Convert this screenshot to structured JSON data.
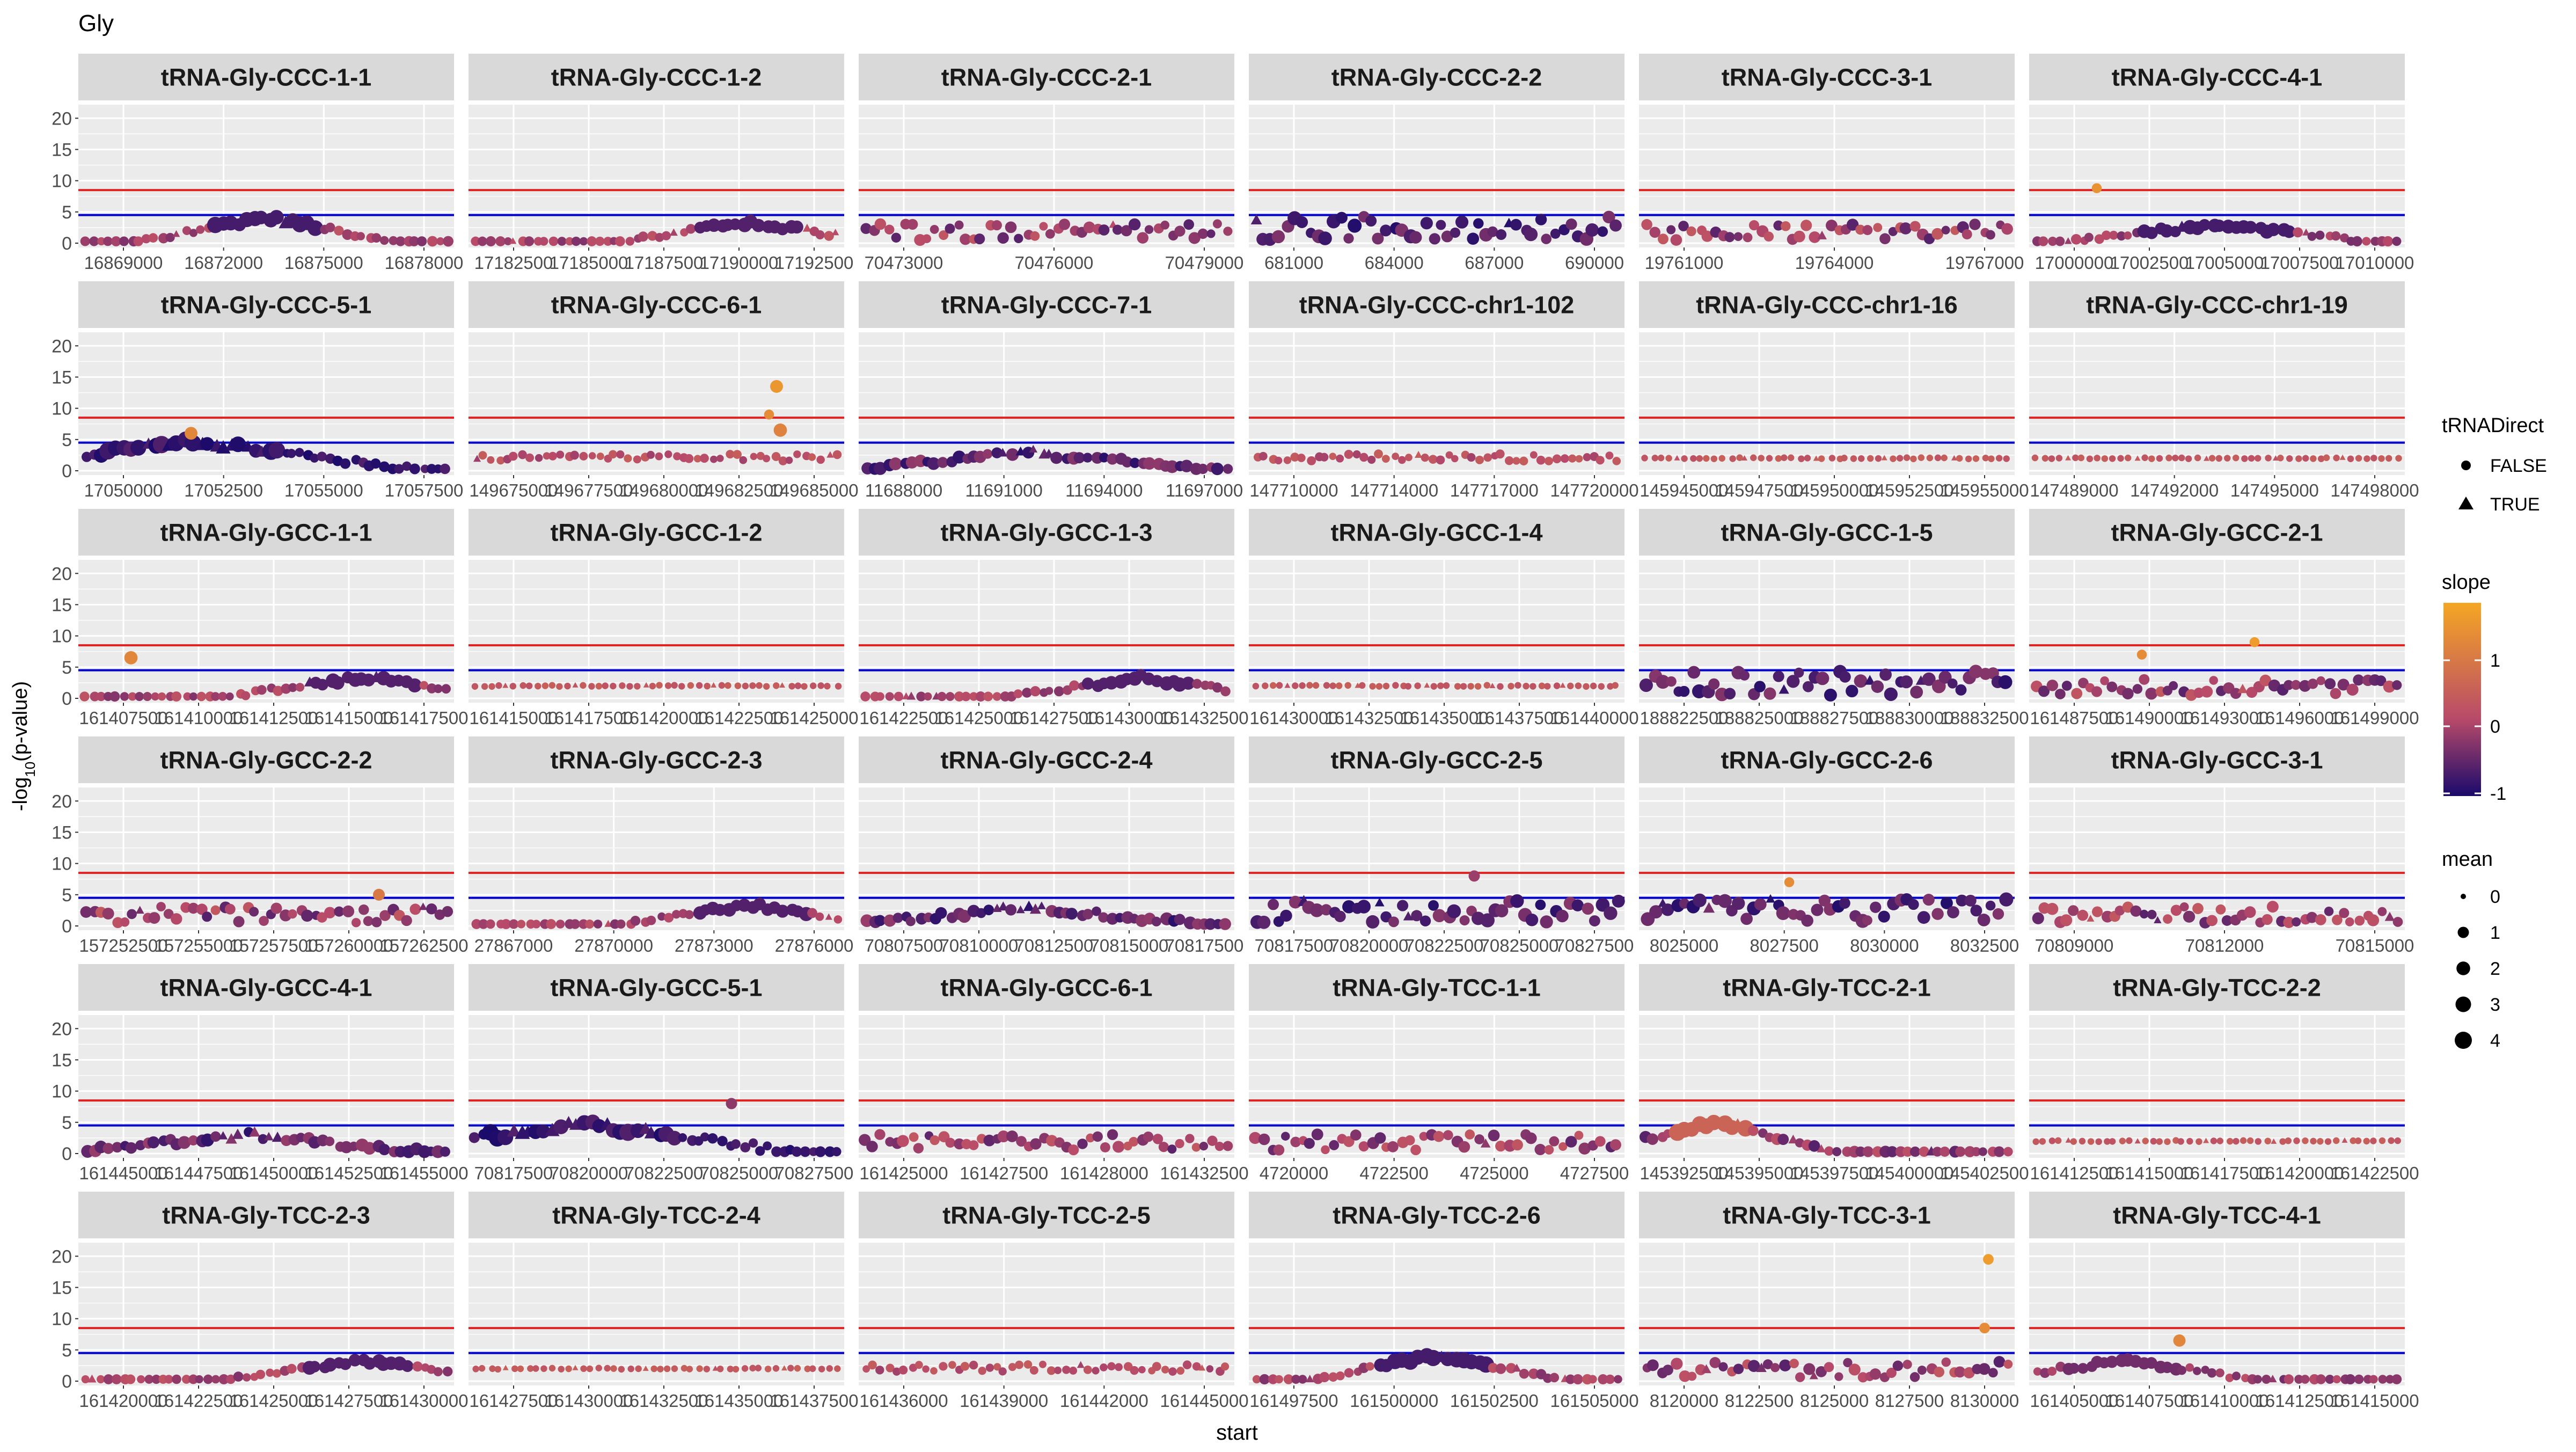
{
  "chart_data": {
    "type": "scatter",
    "title": "Gly",
    "xlabel": "start",
    "ylabel_prefix": "-log",
    "ylabel_sub": "10",
    "ylabel_suffix": "(p-value)",
    "ylim": [
      0,
      22
    ],
    "y_ticks": [
      0,
      5,
      10,
      15,
      20
    ],
    "hlines": [
      {
        "y": 4.5,
        "color": "#0000cc"
      },
      {
        "y": 8.5,
        "color": "#dd2222"
      }
    ],
    "colors": {
      "panel_bg": "#ebebeb",
      "grid": "#ffffff",
      "strip_bg": "#d9d9d9",
      "low": "#1a0a6b",
      "mid": "#b84a6a",
      "high": "#f5a623"
    },
    "legend": {
      "shape_title": "tRNADirect",
      "shape_items": [
        {
          "label": "FALSE",
          "shape": "circle"
        },
        {
          "label": "TRUE",
          "shape": "triangle"
        }
      ],
      "color_title": "slope",
      "color_ticks": [
        "1",
        "0",
        "-1"
      ],
      "color_range": [
        -1.1,
        1.8
      ],
      "size_title": "mean",
      "size_items": [
        "0",
        "1",
        "2",
        "3",
        "4"
      ]
    },
    "panels": [
      {
        "title": "tRNA-Gly-CCC-1-1",
        "x_ticks": [
          "16869000",
          "16872000",
          "16875000",
          "16878000"
        ],
        "pattern": "peak-mid",
        "highlight": []
      },
      {
        "title": "tRNA-Gly-CCC-1-2",
        "x_ticks": [
          "17182500",
          "17185000",
          "17187500",
          "17190000",
          "17192500"
        ],
        "pattern": "bump-right",
        "highlight": []
      },
      {
        "title": "tRNA-Gly-CCC-2-1",
        "x_ticks": [
          "70473000",
          "70476000",
          "70479000"
        ],
        "pattern": "scatter",
        "highlight": []
      },
      {
        "title": "tRNA-Gly-CCC-2-2",
        "x_ticks": [
          "681000",
          "684000",
          "687000",
          "690000"
        ],
        "pattern": "scatter-high",
        "highlight": []
      },
      {
        "title": "tRNA-Gly-CCC-3-1",
        "x_ticks": [
          "19761000",
          "19764000",
          "19767000"
        ],
        "pattern": "scatter",
        "highlight": []
      },
      {
        "title": "tRNA-Gly-CCC-4-1",
        "x_ticks": [
          "17000000",
          "17002500",
          "17005000",
          "17007500",
          "17010000"
        ],
        "pattern": "bump-mid",
        "highlight": [
          {
            "xf": 0.18,
            "y": 8.8,
            "s": 0.3,
            "slope": 1.4
          }
        ]
      },
      {
        "title": "tRNA-Gly-CCC-5-1",
        "x_ticks": [
          "17050000",
          "17052500",
          "17055000",
          "17057500"
        ],
        "pattern": "heavy-left",
        "highlight": [
          {
            "xf": 0.3,
            "y": 6,
            "s": 0.8,
            "slope": 1.2
          }
        ]
      },
      {
        "title": "tRNA-Gly-CCC-6-1",
        "x_ticks": [
          "149675000",
          "149677500",
          "149680000",
          "149682500",
          "149685000"
        ],
        "pattern": "flat-sparse",
        "highlight": [
          {
            "xf": 0.82,
            "y": 13.5,
            "s": 0.8,
            "slope": 1.5
          },
          {
            "xf": 0.8,
            "y": 9,
            "s": 0.3,
            "slope": 1.3
          },
          {
            "xf": 0.83,
            "y": 6.5,
            "s": 0.9,
            "slope": 1.1
          }
        ]
      },
      {
        "title": "tRNA-Gly-CCC-7-1",
        "x_ticks": [
          "11688000",
          "11691000",
          "11694000",
          "11697000"
        ],
        "pattern": "tri-mid",
        "highlight": []
      },
      {
        "title": "tRNA-Gly-CCC-chr1-102",
        "x_ticks": [
          "147710000",
          "147714000",
          "147717000",
          "147720000"
        ],
        "pattern": "flat-sparse",
        "highlight": []
      },
      {
        "title": "tRNA-Gly-CCC-chr1-16",
        "x_ticks": [
          "145945000",
          "145947500",
          "145950000",
          "145952500",
          "145955000"
        ],
        "pattern": "flat",
        "highlight": []
      },
      {
        "title": "tRNA-Gly-CCC-chr1-19",
        "x_ticks": [
          "147489000",
          "147492000",
          "147495000",
          "147498000"
        ],
        "pattern": "flat",
        "highlight": []
      },
      {
        "title": "tRNA-Gly-GCC-1-1",
        "x_ticks": [
          "161407500",
          "161410000",
          "161412500",
          "161415000",
          "161417500"
        ],
        "pattern": "bump-right",
        "highlight": [
          {
            "xf": 0.14,
            "y": 6.5,
            "s": 0.9,
            "slope": 1.2
          }
        ]
      },
      {
        "title": "tRNA-Gly-GCC-1-2",
        "x_ticks": [
          "161415000",
          "161417500",
          "161420000",
          "161422500",
          "161425000"
        ],
        "pattern": "flat",
        "highlight": []
      },
      {
        "title": "tRNA-Gly-GCC-1-3",
        "x_ticks": [
          "161422500",
          "161425000",
          "161427500",
          "161430000",
          "161432500"
        ],
        "pattern": "bump-right",
        "highlight": []
      },
      {
        "title": "tRNA-Gly-GCC-1-4",
        "x_ticks": [
          "161430000",
          "161432500",
          "161435000",
          "161437500",
          "161440000"
        ],
        "pattern": "flat",
        "highlight": []
      },
      {
        "title": "tRNA-Gly-GCC-1-5",
        "x_ticks": [
          "188822500",
          "188825000",
          "188827500",
          "188830000",
          "188832500"
        ],
        "pattern": "scatter-high",
        "highlight": []
      },
      {
        "title": "tRNA-Gly-GCC-2-1",
        "x_ticks": [
          "161487500",
          "161490000",
          "161493000",
          "161496000",
          "161499000"
        ],
        "pattern": "scatter",
        "highlight": [
          {
            "xf": 0.3,
            "y": 7,
            "s": 0.3,
            "slope": 1.3
          },
          {
            "xf": 0.6,
            "y": 9,
            "s": 0.3,
            "slope": 1.6
          }
        ]
      },
      {
        "title": "tRNA-Gly-GCC-2-2",
        "x_ticks": [
          "157252500",
          "157255000",
          "157257500",
          "157260000",
          "157262500"
        ],
        "pattern": "scatter",
        "highlight": [
          {
            "xf": 0.8,
            "y": 5,
            "s": 0.6,
            "slope": 0.9
          }
        ]
      },
      {
        "title": "tRNA-Gly-GCC-2-3",
        "x_ticks": [
          "27867000",
          "27870000",
          "27873000",
          "27876000"
        ],
        "pattern": "bump-right",
        "highlight": []
      },
      {
        "title": "tRNA-Gly-GCC-2-4",
        "x_ticks": [
          "70807500",
          "70810000",
          "70812500",
          "70815000",
          "70817500"
        ],
        "pattern": "tri-mid",
        "highlight": []
      },
      {
        "title": "tRNA-Gly-GCC-2-5",
        "x_ticks": [
          "70817500",
          "70820000",
          "70822500",
          "70825000",
          "70827500"
        ],
        "pattern": "scatter-high",
        "highlight": [
          {
            "xf": 0.6,
            "y": 8,
            "s": 0.5,
            "slope": -0.2
          }
        ]
      },
      {
        "title": "tRNA-Gly-GCC-2-6",
        "x_ticks": [
          "8025000",
          "8027500",
          "8030000",
          "8032500"
        ],
        "pattern": "scatter-high",
        "highlight": [
          {
            "xf": 0.4,
            "y": 7,
            "s": 0.3,
            "slope": 1.3
          }
        ]
      },
      {
        "title": "tRNA-Gly-GCC-3-1",
        "x_ticks": [
          "70809000",
          "70812000",
          "70815000"
        ],
        "pattern": "scatter",
        "highlight": []
      },
      {
        "title": "tRNA-Gly-GCC-4-1",
        "x_ticks": [
          "161445000",
          "161447500",
          "161450000",
          "161452500",
          "161455000"
        ],
        "pattern": "tri-mid",
        "highlight": []
      },
      {
        "title": "tRNA-Gly-GCC-5-1",
        "x_ticks": [
          "70817500",
          "70820000",
          "70822500",
          "70825000",
          "70827500"
        ],
        "pattern": "heavy-left",
        "highlight": [
          {
            "xf": 0.7,
            "y": 8,
            "s": 0.5,
            "slope": -0.3
          }
        ]
      },
      {
        "title": "tRNA-Gly-GCC-6-1",
        "x_ticks": [
          "161425000",
          "161427500",
          "161428000",
          "161432500"
        ],
        "pattern": "scatter",
        "highlight": []
      },
      {
        "title": "tRNA-Gly-TCC-1-1",
        "x_ticks": [
          "4720000",
          "4722500",
          "4725000",
          "4727500"
        ],
        "pattern": "scatter",
        "highlight": []
      },
      {
        "title": "tRNA-Gly-TCC-2-1",
        "x_ticks": [
          "145392500",
          "145395000",
          "145397500",
          "145400000",
          "145402500"
        ],
        "pattern": "peak-left",
        "highlight": []
      },
      {
        "title": "tRNA-Gly-TCC-2-2",
        "x_ticks": [
          "161412500",
          "161415000",
          "161417500",
          "161420000",
          "161422500"
        ],
        "pattern": "flat",
        "highlight": []
      },
      {
        "title": "tRNA-Gly-TCC-2-3",
        "x_ticks": [
          "161420000",
          "161422500",
          "161425000",
          "161427500",
          "161430000"
        ],
        "pattern": "bump-right",
        "highlight": []
      },
      {
        "title": "tRNA-Gly-TCC-2-4",
        "x_ticks": [
          "161427500",
          "161430000",
          "161432500",
          "161435000",
          "161437500"
        ],
        "pattern": "flat",
        "highlight": []
      },
      {
        "title": "tRNA-Gly-TCC-2-5",
        "x_ticks": [
          "161436000",
          "161439000",
          "161442000",
          "161445000"
        ],
        "pattern": "flat-sparse",
        "highlight": []
      },
      {
        "title": "tRNA-Gly-TCC-2-6",
        "x_ticks": [
          "161497500",
          "161500000",
          "161502500",
          "161505000"
        ],
        "pattern": "peak-mid",
        "highlight": []
      },
      {
        "title": "tRNA-Gly-TCC-3-1",
        "x_ticks": [
          "8120000",
          "8122500",
          "8125000",
          "8127500",
          "8130000"
        ],
        "pattern": "scatter",
        "highlight": [
          {
            "xf": 0.93,
            "y": 19.5,
            "s": 0.4,
            "slope": 1.6
          },
          {
            "xf": 0.92,
            "y": 8.5,
            "s": 0.4,
            "slope": 1.3
          }
        ]
      },
      {
        "title": "tRNA-Gly-TCC-4-1",
        "x_ticks": [
          "161405000",
          "161407500",
          "161410000",
          "161412500",
          "161415000"
        ],
        "pattern": "bump-left",
        "highlight": [
          {
            "xf": 0.4,
            "y": 6.5,
            "s": 0.7,
            "slope": 1.2
          }
        ]
      }
    ]
  }
}
